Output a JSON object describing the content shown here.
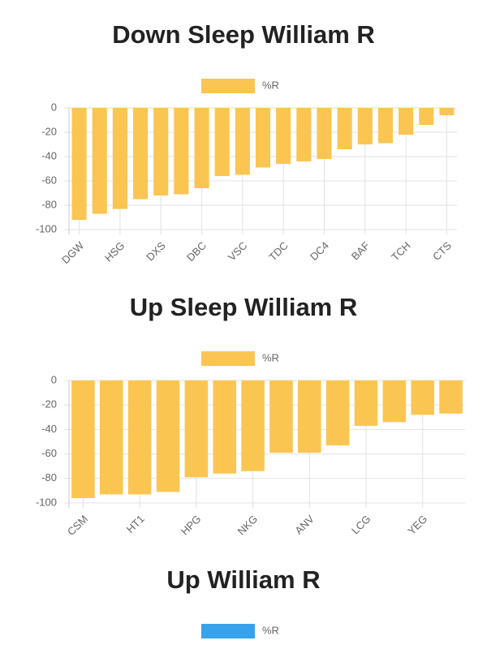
{
  "chart_data": [
    {
      "type": "bar",
      "title": "Down Sleep William R",
      "categories": [
        "DGW",
        null,
        "HSG",
        null,
        "DXS",
        null,
        "DBC",
        null,
        "VSC",
        null,
        "TDC",
        null,
        "DC4",
        null,
        "BAF",
        null,
        "TCH",
        null,
        "CTS"
      ],
      "series": [
        {
          "name": "%R",
          "color": "#fbc552",
          "values": [
            -92,
            -87,
            -83,
            -75,
            -72,
            -71,
            -66,
            -56,
            -55,
            -49,
            -46,
            -44,
            -42,
            -34,
            -30,
            -29,
            -22,
            -14,
            -6
          ]
        }
      ],
      "ylim": [
        -100,
        0
      ],
      "yticks": [
        0,
        -20,
        -40,
        -60,
        -80,
        -100
      ],
      "grid": true
    },
    {
      "type": "bar",
      "title": "Up Sleep William R",
      "categories": [
        "CSM",
        null,
        "HT1",
        null,
        "HPG",
        null,
        "NKG",
        null,
        "ANV",
        null,
        "LCG",
        null,
        "YEG",
        null
      ],
      "series": [
        {
          "name": "%R",
          "color": "#fbc552",
          "values": [
            -96,
            -93,
            -93,
            -91,
            -79,
            -76,
            -74,
            -59,
            -59,
            -53,
            -37,
            -34,
            -28,
            -27
          ]
        }
      ],
      "ylim": [
        -100,
        0
      ],
      "yticks": [
        0,
        -20,
        -40,
        -60,
        -80,
        -100
      ],
      "grid": true
    },
    {
      "type": "bar",
      "title": "Up William R",
      "series": [
        {
          "name": "%R",
          "color": "#36a2eb"
        }
      ]
    }
  ]
}
